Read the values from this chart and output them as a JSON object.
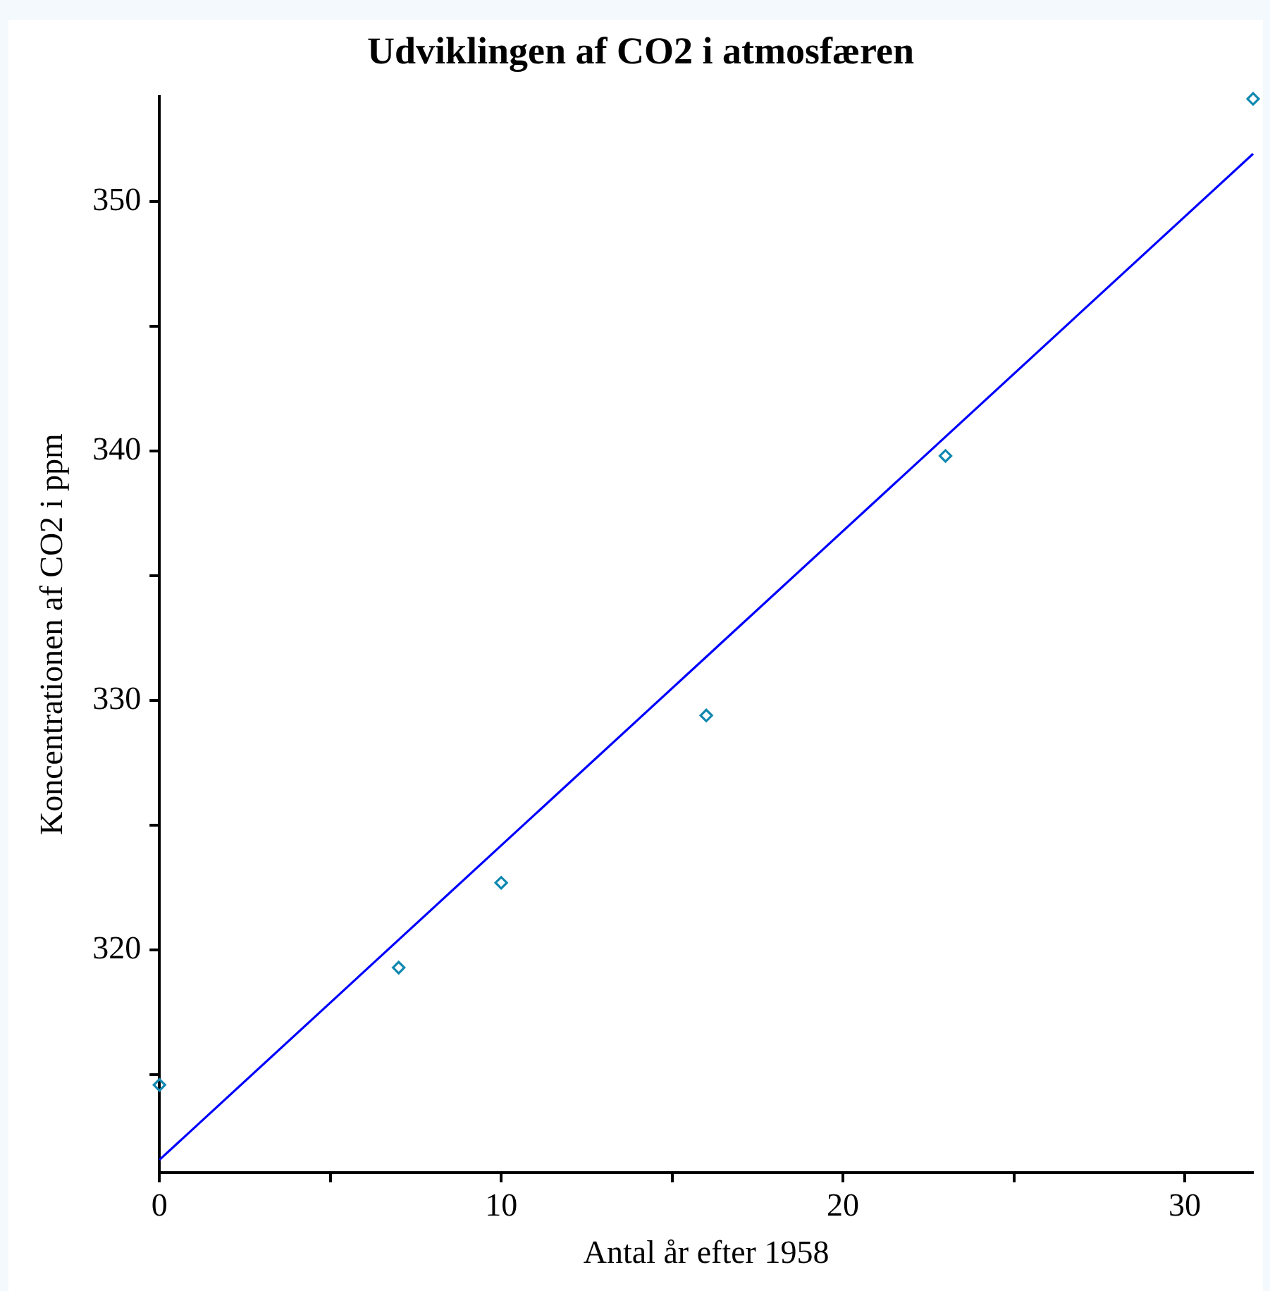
{
  "chart_data": {
    "type": "scatter",
    "title": "Udviklingen af CO2 i atmosfæren",
    "xlabel": "Antal år efter 1958",
    "ylabel": "Koncentrationen af CO2 i ppm",
    "xlim": [
      0,
      32
    ],
    "ylim": [
      311.1,
      354.2
    ],
    "xticks": [
      0,
      {
        "value": 5,
        "label": null
      },
      10,
      {
        "value": 15,
        "label": null
      },
      20,
      {
        "value": 25,
        "label": null
      },
      30
    ],
    "yticks": [
      {
        "value": 315,
        "label": null
      },
      320,
      {
        "value": 325,
        "label": null
      },
      330,
      {
        "value": 335,
        "label": null
      },
      340,
      {
        "value": 345,
        "label": null
      },
      350
    ],
    "grid": false,
    "legend": false,
    "series": [
      {
        "color": "#1088b0",
        "marker": "diamond",
        "x": [
          0,
          7,
          10,
          16,
          23,
          32
        ],
        "values": [
          314.6,
          319.3,
          322.7,
          329.4,
          339.8,
          354.1
        ]
      },
      {
        "type": "line",
        "color": "#0000ff",
        "marker": "none",
        "line_style": "solid",
        "x": [
          0,
          32
        ],
        "values": [
          311.6,
          351.9
        ]
      }
    ]
  }
}
